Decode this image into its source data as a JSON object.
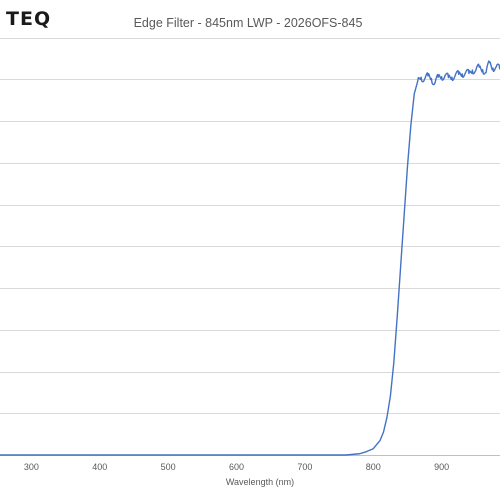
{
  "logo": {
    "text": "TEQ"
  },
  "chart_data": {
    "type": "line",
    "title": "Edge Filter - 845nm LWP - 2026OFS-845",
    "xlabel": "Wavelength (nm)",
    "ylabel": "",
    "xlim": [
      200,
      1000
    ],
    "ylim": [
      0,
      100
    ],
    "x_ticks": [
      300,
      400,
      500,
      600,
      700,
      800,
      900
    ],
    "y_gridlines": [
      0,
      10,
      20,
      30,
      40,
      50,
      60,
      70,
      80,
      90,
      100
    ],
    "grid": true,
    "legend": "none",
    "series": [
      {
        "color": "#4472c4",
        "x": [
          200,
          300,
          400,
          500,
          600,
          700,
          760,
          780,
          790,
          800,
          810,
          815,
          820,
          825,
          830,
          835,
          840,
          845,
          850,
          855,
          860,
          865,
          870,
          875,
          880,
          885,
          890,
          895,
          900,
          905,
          910,
          915,
          920,
          925,
          930,
          935,
          940,
          945,
          950,
          955,
          960,
          965,
          970,
          975,
          980,
          985,
          990,
          995,
          1000
        ],
        "y": [
          0,
          0,
          0,
          0,
          0,
          0,
          0,
          0.3,
          0.8,
          1.5,
          3.5,
          5.5,
          9,
          14,
          22,
          33,
          45,
          57,
          69,
          79,
          86.5,
          89.5,
          90.5,
          90,
          90.8,
          90.2,
          89,
          90.5,
          90.6,
          90.9,
          90.4,
          90.5,
          91,
          91.2,
          91.3,
          91.6,
          91.4,
          92.2,
          92.1,
          92.9,
          92.3,
          91.6,
          94,
          92.7,
          93,
          92.5,
          91.7,
          92.2,
          92.5
        ]
      }
    ]
  }
}
